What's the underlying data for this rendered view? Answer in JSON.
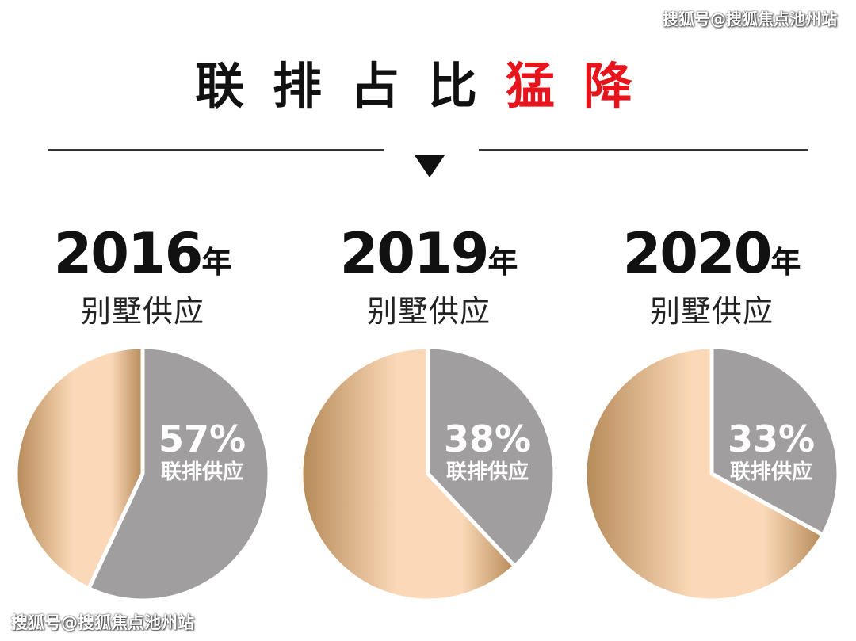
{
  "watermark": "搜狐号@搜狐焦点池州站",
  "headline": {
    "normal": "联排占比",
    "accent": "猛降"
  },
  "colors": {
    "accent": "#e8141b",
    "highlight_slice": "#a09e9f",
    "other_slice_light": "#fbd9b8",
    "other_slice_dark": "#b68a58"
  },
  "chart_data": [
    {
      "type": "pie",
      "year": "2016",
      "year_unit": "年",
      "title": "别墅供应",
      "slices": [
        {
          "name": "联排供应",
          "value": 57,
          "label": "57%",
          "highlight": true
        },
        {
          "value": 43
        }
      ]
    },
    {
      "type": "pie",
      "year": "2019",
      "year_unit": "年",
      "title": "别墅供应",
      "slices": [
        {
          "name": "联排供应",
          "value": 38,
          "label": "38%",
          "highlight": true
        },
        {
          "value": 62
        }
      ]
    },
    {
      "type": "pie",
      "year": "2020",
      "year_unit": "年",
      "title": "别墅供应",
      "slices": [
        {
          "name": "联排供应",
          "value": 33,
          "label": "33%",
          "highlight": true
        },
        {
          "value": 67
        }
      ]
    }
  ]
}
